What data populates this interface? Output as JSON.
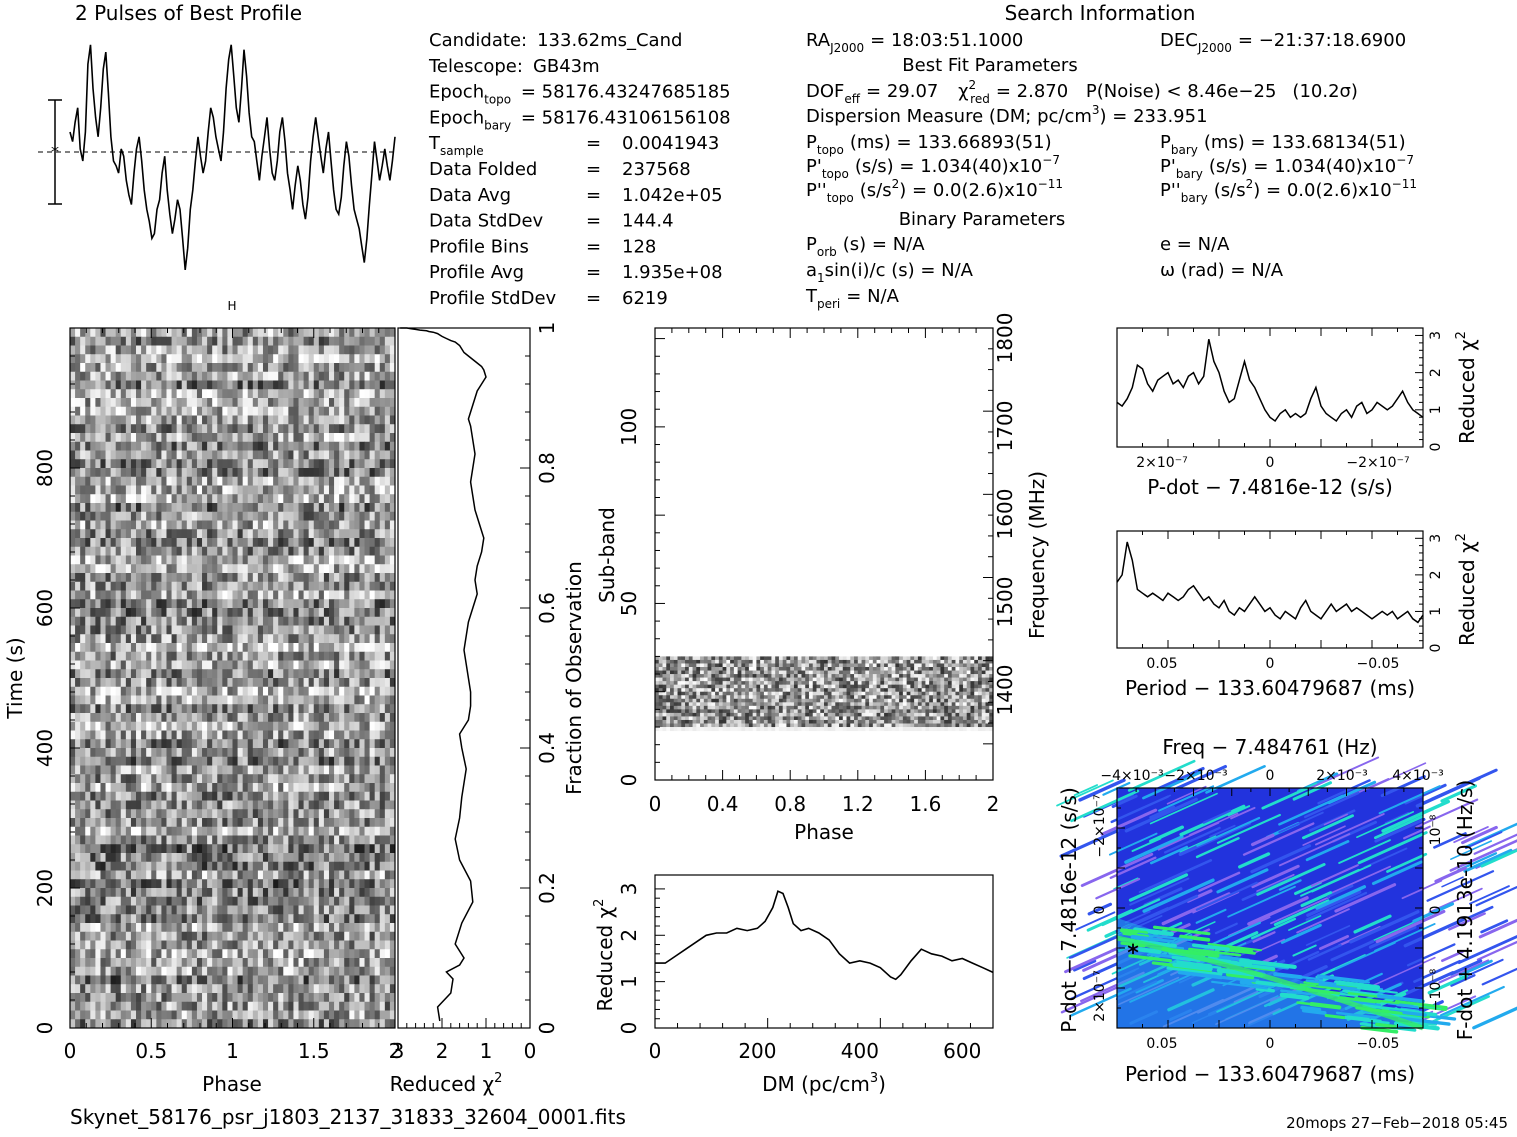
{
  "profile": {
    "title": "2 Pulses of Best Profile",
    "values": [
      0.62,
      0.58,
      0.66,
      0.72,
      0.55,
      0.5,
      0.62,
      0.9,
      0.98,
      0.8,
      0.68,
      0.6,
      0.72,
      0.88,
      0.95,
      0.78,
      0.6,
      0.5,
      0.48,
      0.45,
      0.55,
      0.52,
      0.42,
      0.36,
      0.32,
      0.45,
      0.55,
      0.6,
      0.5,
      0.38,
      0.3,
      0.25,
      0.18,
      0.2,
      0.3,
      0.34,
      0.45,
      0.52,
      0.38,
      0.28,
      0.2,
      0.26,
      0.34,
      0.3,
      0.18,
      0.05,
      0.14,
      0.3,
      0.38,
      0.5,
      0.6,
      0.52,
      0.45,
      0.5,
      0.62,
      0.72,
      0.68,
      0.6,
      0.55,
      0.5,
      0.62,
      0.8,
      0.92,
      0.98,
      0.85,
      0.72,
      0.66,
      0.8,
      0.96,
      0.85,
      0.7,
      0.6,
      0.58,
      0.5,
      0.42,
      0.52,
      0.6,
      0.68,
      0.55,
      0.45,
      0.42,
      0.5,
      0.62,
      0.68,
      0.58,
      0.45,
      0.38,
      0.3,
      0.4,
      0.48,
      0.42,
      0.32,
      0.26,
      0.35,
      0.5,
      0.6,
      0.68,
      0.6,
      0.52,
      0.45,
      0.55,
      0.62,
      0.5,
      0.38,
      0.3,
      0.28,
      0.35,
      0.48,
      0.58,
      0.52,
      0.4,
      0.3,
      0.26,
      0.22,
      0.15,
      0.08,
      0.18,
      0.32,
      0.45,
      0.58,
      0.5,
      0.42,
      0.48,
      0.55,
      0.48,
      0.42,
      0.5,
      0.6
    ]
  },
  "info": {
    "col1": [
      {
        "label": "Candidate:",
        "value": "133.62ms_Cand"
      },
      {
        "label": "Telescope:",
        "value": "GB43m"
      },
      {
        "label": "Epoch",
        "sub": "topo",
        "value": "= 58176.43247685185"
      },
      {
        "label": "Epoch",
        "sub": "bary",
        "value": "= 58176.43106156108"
      },
      {
        "label": "T",
        "sub": "sample",
        "value": "0.0041943"
      },
      {
        "label": "Data Folded",
        "value": "237568"
      },
      {
        "label": "Data Avg",
        "value": "1.042e+05"
      },
      {
        "label": "Data StdDev",
        "value": "144.4"
      },
      {
        "label": "Profile Bins",
        "value": "128"
      },
      {
        "label": "Profile Avg",
        "value": "1.935e+08"
      },
      {
        "label": "Profile StdDev",
        "value": "6219"
      }
    ],
    "eq": "=",
    "search_title": "Search Information",
    "ra_label": "RA",
    "ra_sub": "J2000",
    "ra_value": "= 18:03:51.1000",
    "dec_label": "DEC",
    "dec_sub": "J2000",
    "dec_value": "= −21:37:18.6900",
    "best_fit_title": "Best Fit Parameters",
    "dof_label": "DOF",
    "dof_sub": "eff",
    "dof_value": "= 29.07",
    "chi_label": "χ",
    "chi_sup": "2",
    "chi_sub": "red",
    "chi_value": "= 2.870",
    "pnoise": "P(Noise) < 8.46e−25",
    "sigma": "(10.2σ)",
    "dm_line": "Dispersion Measure (DM; pc/cm",
    "dm_sup": "3",
    "dm_value": ") = 233.951",
    "ptopo_label": "P",
    "ptopo_sub": "topo",
    "ptopo_value": "(ms) =  133.66893(51)",
    "pbary_label": "P",
    "pbary_sub": "bary",
    "pbary_value": "(ms) =  133.68134(51)",
    "pdtopo_label": "P'",
    "pdtopo_sub": "topo",
    "pdtopo_value": "(s/s) =  1.034(40)x10",
    "pdtopo_exp": "−7",
    "pdbary_label": "P'",
    "pdbary_sub": "bary",
    "pdbary_value": "(s/s) =  1.034(40)x10",
    "pdbary_exp": "−7",
    "pddtopo_label": "P''",
    "pddtopo_sub": "topo",
    "pddtopo_value": "(s/s",
    "pddtopo_value2": ") = 0.0(2.6)x10",
    "pddtopo_exp": "−11",
    "pddbary_label": "P''",
    "pddbary_sub": "bary",
    "pddbary_value": "(s/s",
    "pddbary_value2": ") = 0.0(2.6)x10",
    "pddbary_exp": "−11",
    "binary_title": "Binary Parameters",
    "porb_label": "P",
    "porb_sub": "orb",
    "porb_value": "(s) = N/A",
    "e_value": "e = N/A",
    "a1_label": "a",
    "a1_sub": "1",
    "a1_value": "sin(i)/c (s) = N/A",
    "omega_value": "ω (rad) = N/A",
    "tperi_label": "T",
    "tperi_sub": "peri",
    "tperi_value": "= N/A"
  },
  "chart_data": [
    {
      "type": "heatmap",
      "name": "time-phase",
      "xlabel": "Phase",
      "ylabel": "Time (s)",
      "xlim": [
        0,
        2
      ],
      "ylim": [
        0,
        1000
      ],
      "x_ticks": [
        "0",
        "0.5",
        "1",
        "1.5",
        "2"
      ],
      "y_ticks": [
        "0",
        "200",
        "400",
        "600",
        "800"
      ],
      "right_ylabel": "Fraction of Observation",
      "right_ticks": [
        "0",
        "0.2",
        "0.4",
        "0.6",
        "0.8",
        "1"
      ],
      "colormap": "grayscale"
    },
    {
      "type": "line",
      "name": "time-chi2",
      "xlabel": "Reduced χ",
      "xlabel_sup": "2",
      "x_ticks": [
        "3",
        "2",
        "1",
        "0"
      ],
      "xlim": [
        3,
        0
      ],
      "ylim": [
        0,
        1
      ],
      "x": [
        2.05,
        2.1,
        1.8,
        1.75,
        1.9,
        1.6,
        1.5,
        1.7,
        1.55,
        1.3,
        1.35,
        1.6,
        1.7,
        1.6,
        1.55,
        1.5,
        1.45,
        1.55,
        1.6,
        1.4,
        1.35,
        1.35,
        1.4,
        1.45,
        1.5,
        1.45,
        1.4,
        1.35,
        1.3,
        1.25,
        1.2,
        1.25,
        1.2,
        1.1,
        1.05,
        1.15,
        1.25,
        1.3,
        1.35,
        1.3,
        1.25,
        1.3,
        1.35,
        1.4,
        1.35,
        1.3,
        1.25,
        1.2,
        1.1,
        1.05,
        1.0,
        1.05,
        1.1,
        1.2,
        1.3,
        1.4,
        1.5,
        1.55,
        1.6,
        1.7,
        1.8,
        1.9,
        2.0,
        2.05,
        2.1,
        2.2,
        2.3,
        2.35,
        2.5,
        2.6,
        2.7,
        2.8,
        2.85,
        2.8,
        2.85,
        2.9,
        2.95,
        2.9,
        2.85
      ],
      "y": [
        0.01,
        0.03,
        0.05,
        0.07,
        0.08,
        0.09,
        0.1,
        0.12,
        0.15,
        0.18,
        0.21,
        0.24,
        0.27,
        0.3,
        0.33,
        0.35,
        0.37,
        0.4,
        0.42,
        0.44,
        0.46,
        0.48,
        0.5,
        0.52,
        0.54,
        0.56,
        0.58,
        0.59,
        0.6,
        0.61,
        0.62,
        0.64,
        0.66,
        0.68,
        0.7,
        0.72,
        0.74,
        0.76,
        0.78,
        0.8,
        0.82,
        0.84,
        0.86,
        0.87,
        0.88,
        0.89,
        0.9,
        0.91,
        0.92,
        0.925,
        0.93,
        0.94,
        0.945,
        0.95,
        0.955,
        0.96,
        0.965,
        0.97,
        0.975,
        0.98,
        0.982,
        0.985,
        0.988,
        0.99,
        0.992,
        0.994,
        0.995,
        0.996,
        0.997,
        0.998,
        0.999,
        1.0,
        1.0,
        1.0,
        1.0,
        1.0,
        1.0,
        1.0,
        1.0
      ]
    },
    {
      "type": "heatmap",
      "name": "subband-phase",
      "xlabel": "Phase",
      "ylabel": "Sub-band",
      "xlim": [
        0,
        2
      ],
      "ylim": [
        0,
        128
      ],
      "x_ticks": [
        "0",
        "0.4",
        "0.8",
        "1.2",
        "1.6",
        "2"
      ],
      "y_ticks": [
        "0",
        "50",
        "100"
      ],
      "right_ylabel": "Frequency (MHz)",
      "right_ticks": [
        "1400",
        "1500",
        "1600",
        "1700",
        "1800"
      ],
      "data_band": [
        14,
        35
      ],
      "colormap": "grayscale"
    },
    {
      "type": "line",
      "name": "dm-chi2",
      "xlabel": "DM (pc/cm",
      "xlabel_sup": "3",
      "xlabel_end": ")",
      "ylabel": "Reduced χ",
      "ylabel_sup": "2",
      "xlim": [
        0,
        660
      ],
      "ylim": [
        0,
        3.3
      ],
      "x_ticks": [
        "0",
        "200",
        "400",
        "600"
      ],
      "y_ticks": [
        "0",
        "1",
        "2",
        "3"
      ],
      "x": [
        0,
        20,
        40,
        60,
        80,
        100,
        120,
        140,
        160,
        180,
        200,
        215,
        230,
        240,
        250,
        260,
        270,
        285,
        300,
        320,
        340,
        360,
        380,
        400,
        420,
        440,
        460,
        470,
        480,
        500,
        520,
        540,
        560,
        580,
        600,
        620,
        640,
        660
      ],
      "y": [
        1.4,
        1.4,
        1.55,
        1.7,
        1.85,
        2.0,
        2.05,
        2.05,
        2.15,
        2.1,
        2.15,
        2.3,
        2.6,
        2.95,
        2.9,
        2.6,
        2.25,
        2.1,
        2.15,
        2.05,
        1.9,
        1.6,
        1.4,
        1.45,
        1.4,
        1.3,
        1.1,
        1.05,
        1.15,
        1.45,
        1.7,
        1.6,
        1.55,
        1.45,
        1.5,
        1.4,
        1.3,
        1.2
      ]
    },
    {
      "type": "line",
      "name": "pdot-chi2",
      "xlabel": "P-dot − 7.4816e-12 (s/s)",
      "ylabel": "Reduced χ",
      "ylabel_sup": "2",
      "xlim": [
        2.6e-07,
        -2.6e-07
      ],
      "ylim": [
        0,
        3.2
      ],
      "x_ticks": [
        "2×10⁻⁷",
        "0",
        "−2×10⁻⁷"
      ],
      "y_ticks": [
        "0",
        "1",
        "2",
        "3"
      ],
      "y": [
        1.2,
        1.1,
        1.3,
        1.6,
        2.2,
        2.1,
        1.7,
        1.5,
        1.8,
        1.9,
        2.0,
        1.7,
        1.8,
        1.6,
        1.9,
        2.0,
        1.7,
        1.9,
        2.9,
        2.3,
        2.0,
        1.5,
        1.2,
        1.3,
        1.8,
        2.3,
        1.8,
        1.6,
        1.3,
        1.0,
        0.8,
        0.7,
        0.9,
        1.0,
        0.8,
        0.9,
        0.8,
        0.9,
        1.3,
        1.6,
        1.1,
        0.9,
        0.8,
        0.7,
        0.9,
        1.0,
        0.8,
        1.1,
        1.2,
        0.9,
        1.0,
        1.2,
        1.1,
        1.0,
        1.1,
        1.3,
        1.5,
        1.2,
        1.0,
        0.9,
        0.8
      ]
    },
    {
      "type": "line",
      "name": "period-chi2",
      "xlabel": "Period − 133.60479687 (ms)",
      "ylabel": "Reduced χ",
      "ylabel_sup": "2",
      "xlim": [
        0.07,
        -0.07
      ],
      "ylim": [
        0,
        3.2
      ],
      "x_ticks": [
        "0.05",
        "0",
        "−0.05"
      ],
      "y_ticks": [
        "0",
        "1",
        "2",
        "3"
      ],
      "y": [
        1.8,
        2.0,
        2.9,
        2.4,
        1.6,
        1.5,
        1.4,
        1.5,
        1.4,
        1.3,
        1.5,
        1.4,
        1.3,
        1.4,
        1.6,
        1.7,
        1.5,
        1.3,
        1.4,
        1.2,
        1.1,
        1.3,
        1.0,
        0.9,
        1.1,
        1.0,
        1.2,
        1.4,
        1.2,
        1.0,
        1.1,
        0.9,
        0.8,
        1.0,
        0.9,
        0.8,
        1.1,
        1.3,
        1.0,
        0.9,
        0.8,
        1.0,
        1.2,
        1.0,
        1.1,
        1.2,
        1.0,
        1.1,
        1.0,
        0.9,
        0.8,
        0.9,
        1.0,
        0.9,
        1.0,
        0.8,
        0.9,
        1.0,
        0.8,
        0.7,
        0.9
      ]
    },
    {
      "type": "heatmap",
      "name": "pdot-period",
      "title": "Freq − 7.484761 (Hz)",
      "xlabel": "Period − 133.60479687 (ms)",
      "ylabel": "P-dot − 7.4816e-12 (s/s)",
      "right_ylabel": "F-dot + 4.1913e-10 (Hz/s)",
      "x_ticks": [
        "0.05",
        "0",
        "−0.05"
      ],
      "top_ticks": [
        "−4×10⁻³",
        "−2×10⁻³",
        "0",
        "2×10⁻³",
        "4×10⁻³"
      ],
      "y_ticks": [
        "−2×10⁻⁷",
        "0",
        "2×10⁻⁷"
      ],
      "right_ticks": [
        "10⁻⁸",
        "0",
        "−10⁻⁸"
      ],
      "colormap": "blue-cyan-green",
      "colors": [
        "#2233dd",
        "#3355ee",
        "#22aaee",
        "#22ddcc",
        "#33ee66",
        "#8866ee"
      ]
    }
  ],
  "footer": {
    "filename": "Skynet_58176_psr_j1803_2137_31833_32604_0001.fits",
    "stamp": "20mops 27−Feb−2018 05:45"
  }
}
